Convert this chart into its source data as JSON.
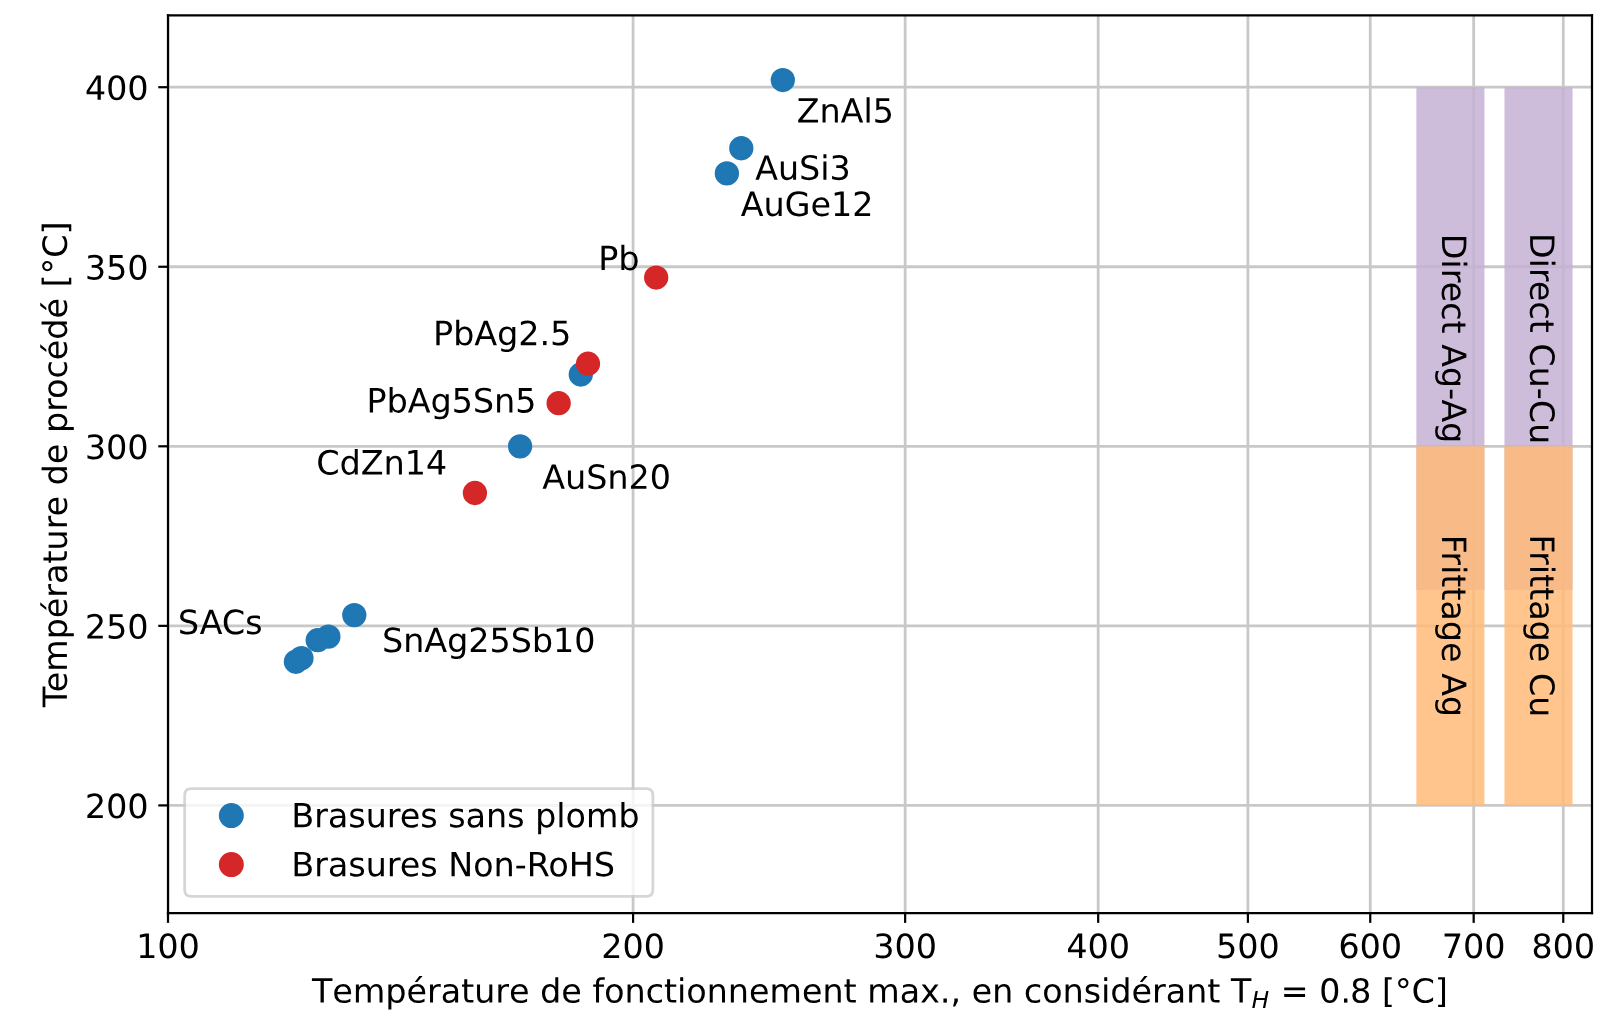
{
  "chart_data": {
    "type": "scatter",
    "xlabel": "Température de fonctionnement max., en considérant T$_{H}$ = 0.8 [°C]",
    "ylabel": "Température de procédé [°C]",
    "log": "x",
    "xlim": [
      100,
      835
    ],
    "xticks": [
      100,
      200,
      300,
      400,
      500,
      600,
      700,
      800
    ],
    "ylim": [
      170,
      420
    ],
    "yticks": [
      200,
      250,
      300,
      350,
      400
    ],
    "grid": true,
    "legend": "bottom left",
    "marker": "circle",
    "series": [
      {
        "name": "Brasures sans plomb",
        "color": "#1f77b4",
        "x": [
          250,
          235,
          230,
          185,
          169,
          132,
          127,
          125,
          122,
          121
        ],
        "values": [
          402,
          383,
          376,
          320,
          300,
          253,
          247,
          246,
          241,
          240
        ]
      },
      {
        "name": "Brasures Non-RoHS",
        "color": "#d62728",
        "x": [
          207,
          187,
          179,
          158
        ],
        "values": [
          347,
          323,
          312,
          287
        ]
      },
      {
        "name": "Direct Ag-Ag",
        "type": "bar",
        "color": "#c5b0d5",
        "x": [
          677
        ],
        "base": [
          260
        ],
        "values": [
          140
        ]
      },
      {
        "name": "Frittage Ag",
        "type": "bar",
        "color": "#ffbb78",
        "x": [
          677
        ],
        "base": [
          200
        ],
        "values": [
          100
        ]
      },
      {
        "name": "Direct Cu-Cu",
        "type": "bar",
        "color": "#c5b0d5",
        "x": [
          772
        ],
        "base": [
          260
        ],
        "values": [
          140
        ]
      },
      {
        "name": "Frittage Cu",
        "type": "bar",
        "color": "#ffbb78",
        "x": [
          772
        ],
        "base": [
          200
        ],
        "values": [
          100
        ]
      }
    ],
    "annotations": [
      {
        "text": "ZnAl5",
        "x": 250,
        "y": 402
      },
      {
        "text": "AuSi3",
        "x": 235,
        "y": 383
      },
      {
        "text": "AuGe12",
        "x": 230,
        "y": 376
      },
      {
        "text": "Pb",
        "x": 207,
        "y": 347
      },
      {
        "text": "PbAg2.5",
        "x": 187,
        "y": 323
      },
      {
        "text": "PbAg5Sn5",
        "x": 179,
        "y": 312
      },
      {
        "text": "AuSn20",
        "x": 169,
        "y": 300
      },
      {
        "text": "CdZn14",
        "x": 158,
        "y": 287
      },
      {
        "text": "SACs",
        "x": 122,
        "y": 241
      },
      {
        "text": "SnAg25Sb10",
        "x": 132,
        "y": 253
      }
    ]
  }
}
